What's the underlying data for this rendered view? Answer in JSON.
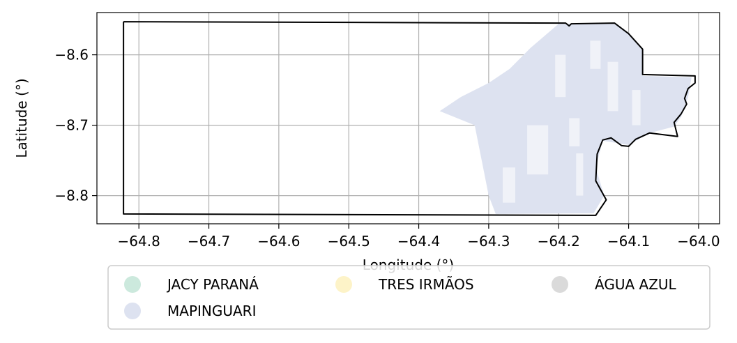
{
  "chart_data": {
    "type": "map",
    "xlabel": "Longitude (°)",
    "ylabel": "Latitude (°)",
    "xlim": [
      -64.86,
      -63.97
    ],
    "ylim": [
      -8.84,
      -8.54
    ],
    "xticks": [
      -64.8,
      -64.7,
      -64.6,
      -64.5,
      -64.4,
      -64.3,
      -64.2,
      -64.1,
      -64.0
    ],
    "xtick_labels": [
      "−64.8",
      "−64.7",
      "−64.6",
      "−64.5",
      "−64.4",
      "−64.3",
      "−64.2",
      "−64.1",
      "−64.0"
    ],
    "yticks": [
      -8.6,
      -8.7,
      -8.8
    ],
    "ytick_labels": [
      "−8.6",
      "−8.7",
      "−8.8"
    ],
    "grid": true,
    "legend_position": "bottom-center",
    "legend": [
      {
        "label": "JACY PARANÁ",
        "color": "#cce9dd"
      },
      {
        "label": "TRES IRMÃOS",
        "color": "#fdf3c8"
      },
      {
        "label": "ÁGUA AZUL",
        "color": "#dadada"
      },
      {
        "label": "MAPINGUARI",
        "color": "#dde2f0"
      }
    ],
    "boundary": [
      [
        -64.822,
        -8.553
      ],
      [
        -64.19,
        -8.555
      ],
      [
        -64.185,
        -8.559
      ],
      [
        -64.182,
        -8.556
      ],
      [
        -64.12,
        -8.555
      ],
      [
        -64.1,
        -8.57
      ],
      [
        -64.08,
        -8.592
      ],
      [
        -64.08,
        -8.628
      ],
      [
        -64.005,
        -8.63
      ],
      [
        -64.005,
        -8.64
      ],
      [
        -64.015,
        -8.648
      ],
      [
        -64.02,
        -8.662
      ],
      [
        -64.017,
        -8.67
      ],
      [
        -64.025,
        -8.684
      ],
      [
        -64.035,
        -8.696
      ],
      [
        -64.03,
        -8.716
      ],
      [
        -64.07,
        -8.711
      ],
      [
        -64.09,
        -8.72
      ],
      [
        -64.1,
        -8.73
      ],
      [
        -64.11,
        -8.729
      ],
      [
        -64.125,
        -8.718
      ],
      [
        -64.137,
        -8.721
      ],
      [
        -64.145,
        -8.741
      ],
      [
        -64.147,
        -8.779
      ],
      [
        -64.132,
        -8.806
      ],
      [
        -64.147,
        -8.828
      ],
      [
        -64.822,
        -8.826
      ],
      [
        -64.822,
        -8.553
      ]
    ],
    "regions": [
      {
        "name": "MAPINGUARI",
        "color": "#dde2f0",
        "polygon": [
          [
            -64.2,
            -8.556
          ],
          [
            -64.12,
            -8.556
          ],
          [
            -64.1,
            -8.571
          ],
          [
            -64.08,
            -8.593
          ],
          [
            -64.08,
            -8.63
          ],
          [
            -64.01,
            -8.632
          ],
          [
            -64.015,
            -8.66
          ],
          [
            -64.025,
            -8.688
          ],
          [
            -64.035,
            -8.702
          ],
          [
            -64.07,
            -8.711
          ],
          [
            -64.1,
            -8.728
          ],
          [
            -64.137,
            -8.722
          ],
          [
            -64.147,
            -8.76
          ],
          [
            -64.135,
            -8.8
          ],
          [
            -64.15,
            -8.825
          ],
          [
            -64.29,
            -8.826
          ],
          [
            -64.3,
            -8.8
          ],
          [
            -64.31,
            -8.75
          ],
          [
            -64.32,
            -8.7
          ],
          [
            -64.37,
            -8.68
          ],
          [
            -64.34,
            -8.66
          ],
          [
            -64.3,
            -8.64
          ],
          [
            -64.27,
            -8.62
          ],
          [
            -64.24,
            -8.59
          ]
        ]
      }
    ]
  }
}
